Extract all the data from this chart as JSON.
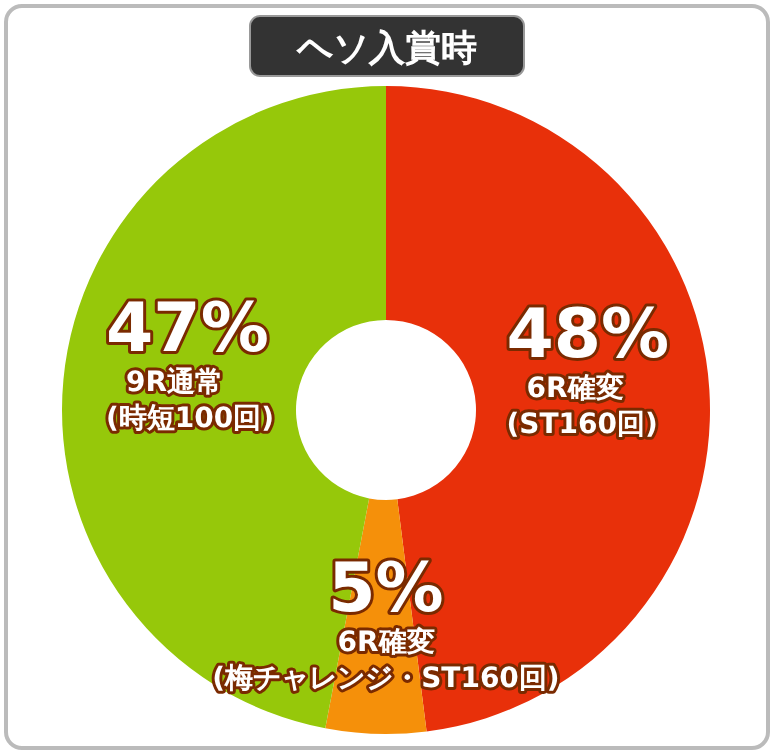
{
  "chart_data": {
    "type": "donut",
    "title": "ヘソ入賞時",
    "categories": [
      "6R確変 (ST160回)",
      "6R確変 (梅チャレンジ・ST160回)",
      "9R通常 (時短100回)"
    ],
    "values": [
      48,
      5,
      47
    ],
    "colors": [
      "#e8300a",
      "#f5900a",
      "#96c80a"
    ],
    "value_labels": [
      "48%",
      "5%",
      "47%"
    ]
  }
}
